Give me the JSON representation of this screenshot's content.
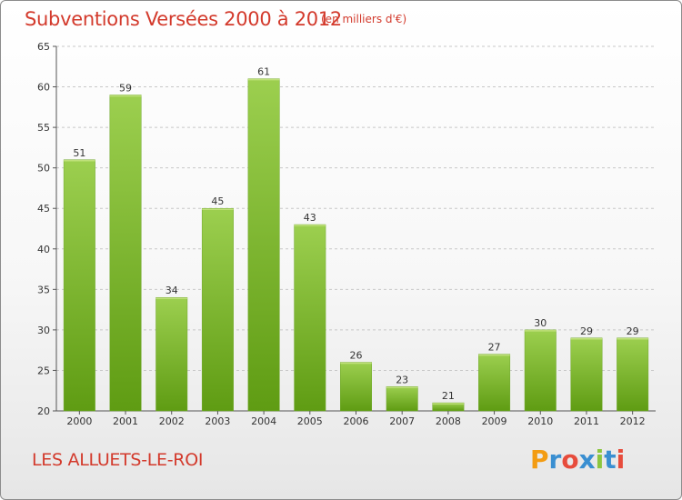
{
  "header": {
    "title": "Subventions Versées 2000 à 2012",
    "subtitle": "(en milliers d'€)"
  },
  "footer": {
    "commune": "LES ALLUETS-LE-ROI",
    "logo_letters": [
      "P",
      "r",
      "o",
      "x",
      "i",
      "t",
      "i"
    ],
    "logo_colors": [
      "#f39c12",
      "#3a8fd1",
      "#e74c3c",
      "#3a8fd1",
      "#8cc63f",
      "#3a8fd1",
      "#e74c3c"
    ]
  },
  "colors": {
    "title": "#d33a2c",
    "bar_light": "#9ccf4f",
    "bar_dark": "#5f9c13",
    "grid": "#c8c8c8",
    "axis": "#555555"
  },
  "chart_data": {
    "type": "bar",
    "title": "Subventions Versées 2000 à 2012",
    "subtitle": "(en milliers d'€)",
    "xlabel": "",
    "ylabel": "",
    "categories": [
      "2000",
      "2001",
      "2002",
      "2003",
      "2004",
      "2005",
      "2006",
      "2007",
      "2008",
      "2009",
      "2010",
      "2011",
      "2012"
    ],
    "values": [
      51,
      59,
      34,
      45,
      61,
      43,
      26,
      23,
      21,
      27,
      30,
      29,
      29
    ],
    "ylim": [
      20,
      65
    ],
    "yticks": [
      20,
      25,
      30,
      35,
      40,
      45,
      50,
      55,
      60,
      65
    ],
    "grid": "horizontal dashed",
    "legend": "none"
  }
}
